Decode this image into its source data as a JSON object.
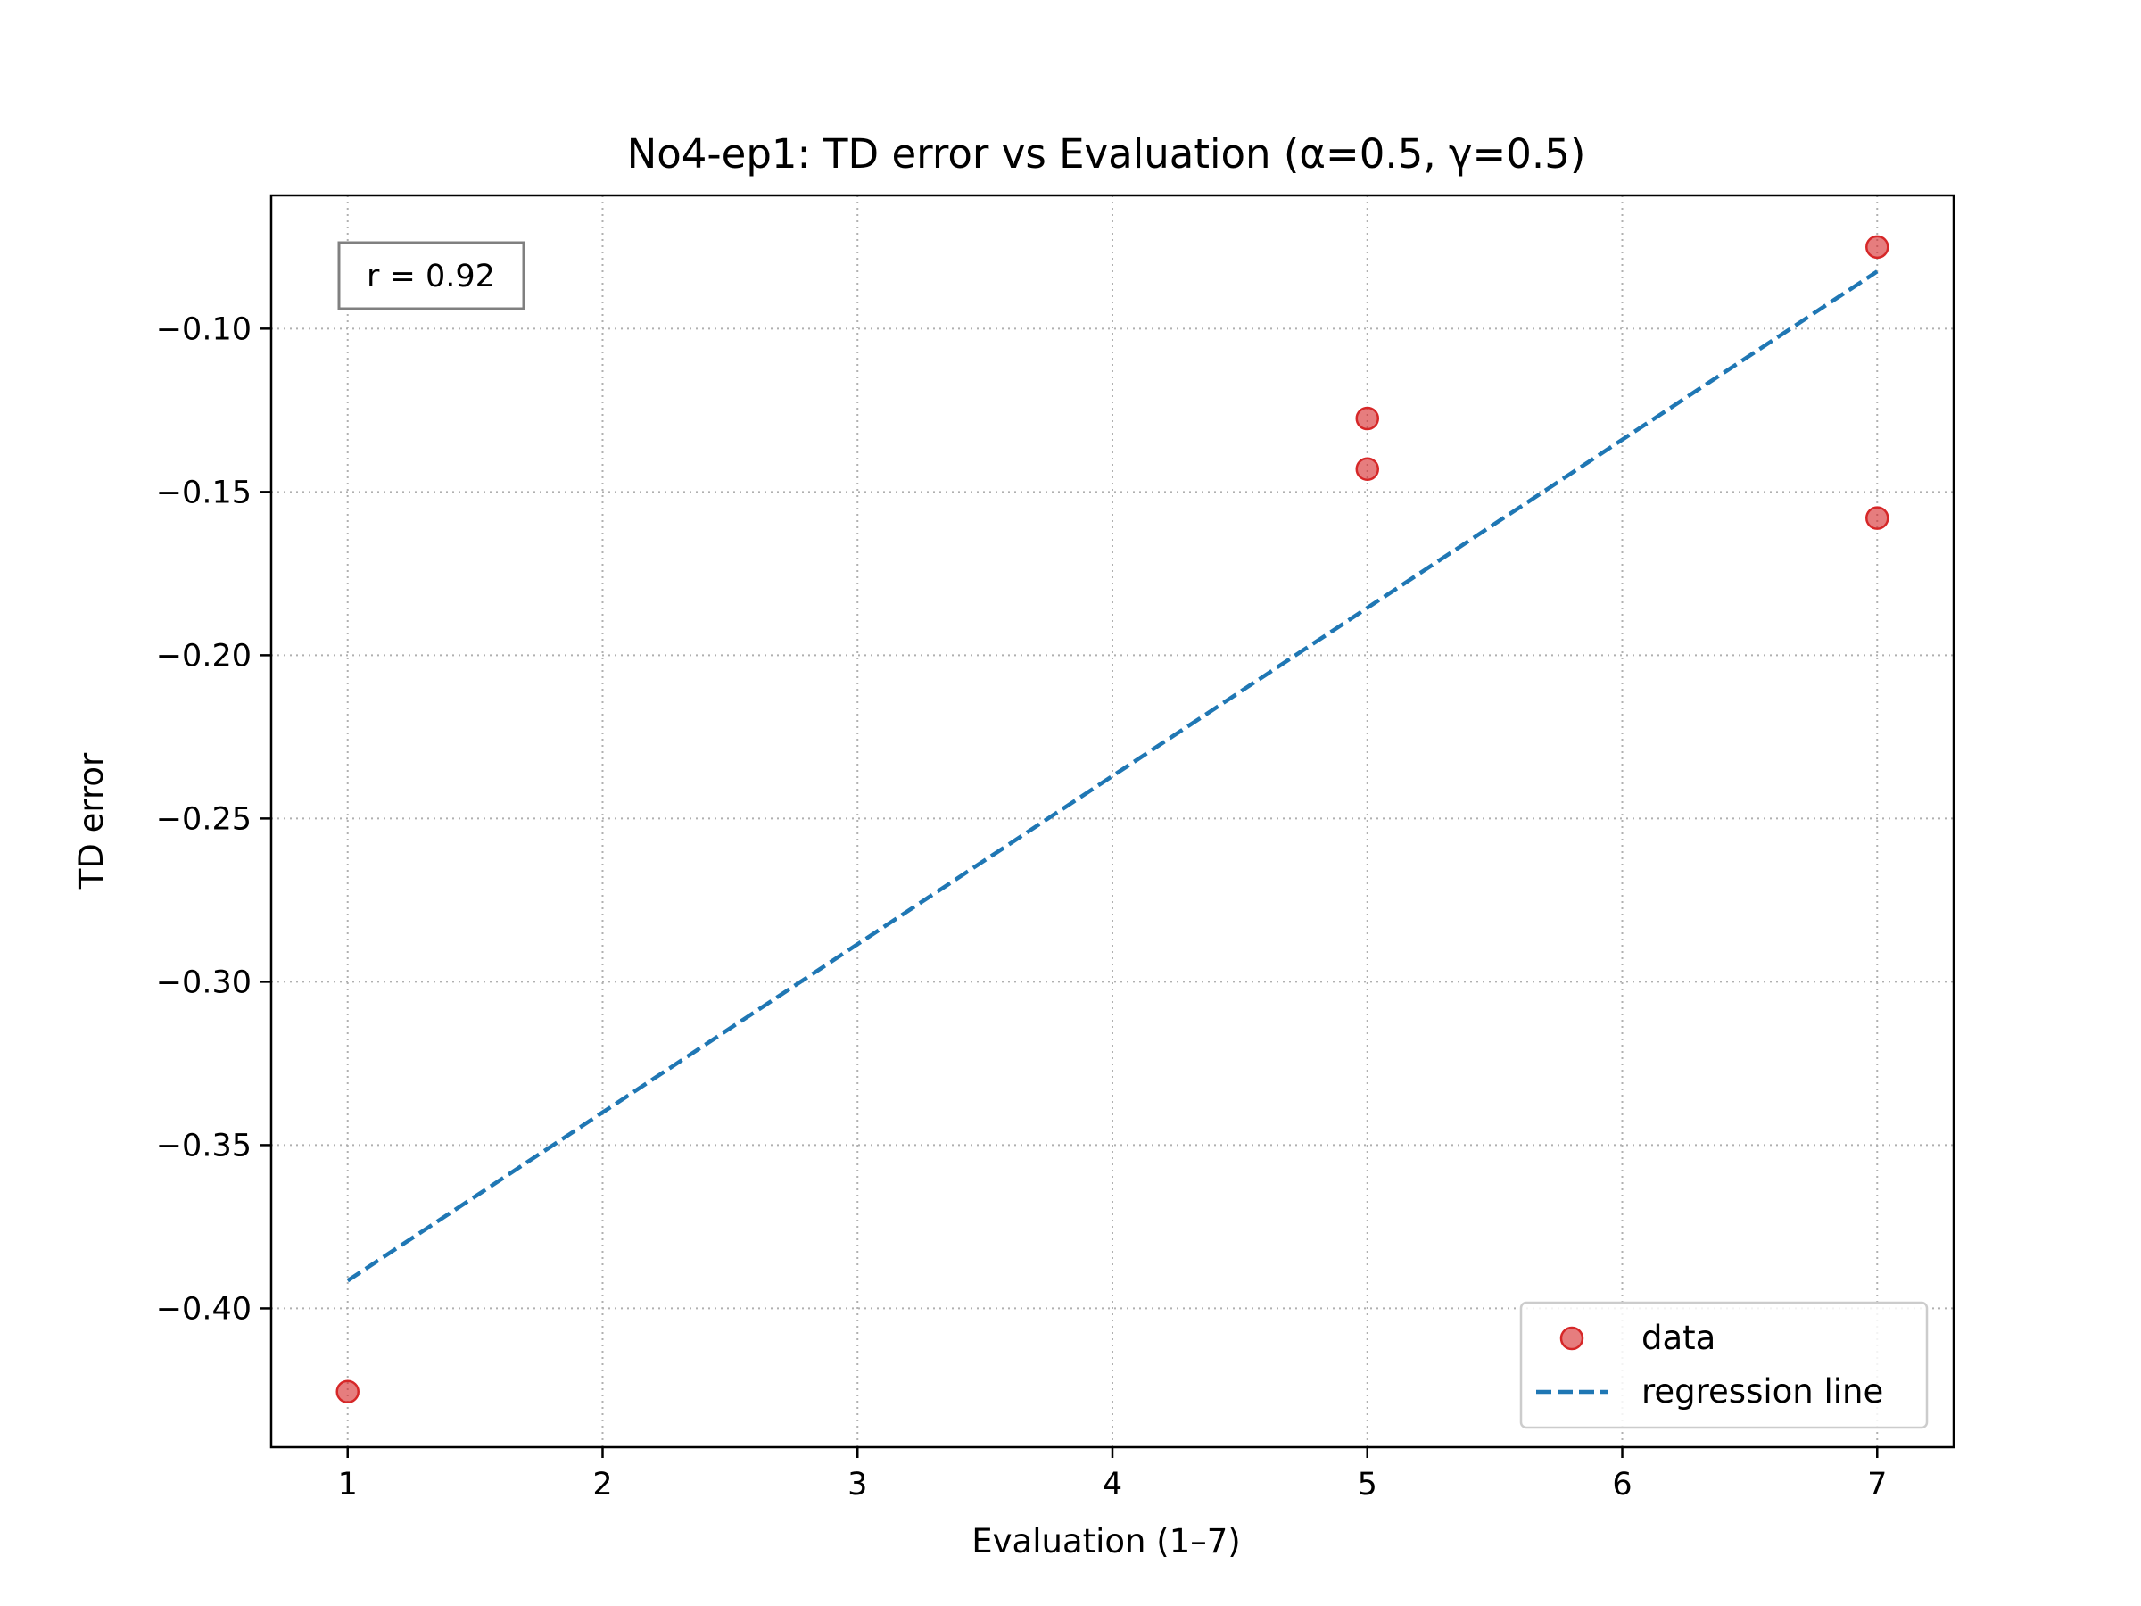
{
  "chart_data": {
    "type": "scatter",
    "title": "No4-ep1: TD error vs Evaluation (α=0.5, γ=0.5)",
    "xlabel": "Evaluation (1–7)",
    "ylabel": "TD error",
    "xlim": [
      0.7,
      7.3
    ],
    "ylim": [
      -0.4425,
      -0.0592
    ],
    "x_ticks": [
      1,
      2,
      3,
      4,
      5,
      6,
      7
    ],
    "x_tick_labels": [
      "1",
      "2",
      "3",
      "4",
      "5",
      "6",
      "7"
    ],
    "y_ticks": [
      -0.4,
      -0.35,
      -0.3,
      -0.25,
      -0.2,
      -0.15,
      -0.1
    ],
    "y_tick_labels": [
      "−0.40",
      "−0.35",
      "−0.30",
      "−0.25",
      "−0.20",
      "−0.15",
      "−0.10"
    ],
    "grid": true,
    "legend_position": "lower-right",
    "series": [
      {
        "name": "data",
        "kind": "scatter",
        "color": "#d62728",
        "points": [
          {
            "x": 1,
            "y": -0.4255
          },
          {
            "x": 5,
            "y": -0.1275
          },
          {
            "x": 5,
            "y": -0.143
          },
          {
            "x": 7,
            "y": -0.075
          },
          {
            "x": 7,
            "y": -0.158
          }
        ]
      },
      {
        "name": "regression line",
        "kind": "line",
        "style": "dashed",
        "color": "#1f77b4",
        "points": [
          {
            "x": 1,
            "y": -0.3915
          },
          {
            "x": 7,
            "y": -0.0825
          }
        ]
      }
    ],
    "annotation": "r = 0.92"
  }
}
